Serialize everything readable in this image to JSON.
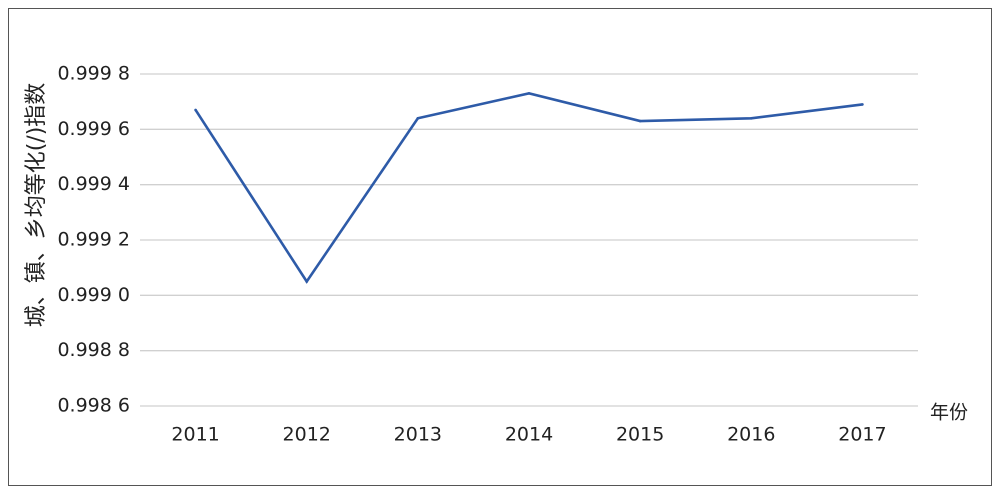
{
  "chart_data": {
    "type": "line",
    "xlabel": "年份",
    "ylabel": "城、镇、乡均等化(/)指数",
    "categories": [
      "2011",
      "2012",
      "2013",
      "2014",
      "2015",
      "2016",
      "2017"
    ],
    "series": [
      {
        "values": [
          0.99967,
          0.99905,
          0.99964,
          0.99973,
          0.99963,
          0.99964,
          0.99969
        ]
      }
    ],
    "ylim": [
      0.9986,
      0.9998
    ],
    "yticks": [
      {
        "value": 0.9998,
        "label": "0.999 8"
      },
      {
        "value": 0.9996,
        "label": "0.999 6"
      },
      {
        "value": 0.9994,
        "label": "0.999 4"
      },
      {
        "value": 0.9992,
        "label": "0.999 2"
      },
      {
        "value": 0.999,
        "label": "0.999 0"
      },
      {
        "value": 0.9988,
        "label": "0.998 8"
      },
      {
        "value": 0.9986,
        "label": "0.998 6"
      }
    ],
    "grid": true,
    "line_color": "#2E5BA8",
    "grid_color": "#D0D0D0"
  }
}
